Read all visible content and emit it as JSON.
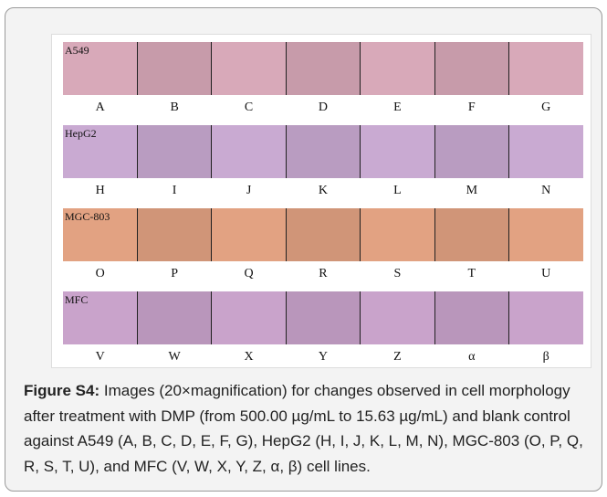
{
  "figure": {
    "rows": [
      {
        "name": "A549",
        "color": "#d8a9b9",
        "labels": [
          "A",
          "B",
          "C",
          "D",
          "E",
          "F",
          "G"
        ]
      },
      {
        "name": "HepG2",
        "color": "#c9aad2",
        "labels": [
          "H",
          "I",
          "J",
          "K",
          "L",
          "M",
          "N"
        ]
      },
      {
        "name": "MGC-803",
        "color": "#e2a282",
        "labels": [
          "O",
          "P",
          "Q",
          "R",
          "S",
          "T",
          "U"
        ]
      },
      {
        "name": "MFC",
        "color": "#c9a3cb",
        "labels": [
          "V",
          "W",
          "X",
          "Y",
          "Z",
          "α",
          "β"
        ]
      }
    ]
  },
  "caption": {
    "label": "Figure S4:",
    "text": "Images (20×magnification) for changes observed in cell morphology after treatment with DMP (from 500.00 µg/mL to 15.63  µg/mL) and blank control against A549 (A, B, C, D, E, F, G), HepG2 (H, I, J, K, L, M, N), MGC-803 (O, P, Q, R, S, T, U), and MFC (V, W, X, Y, Z, α, β) cell lines."
  }
}
